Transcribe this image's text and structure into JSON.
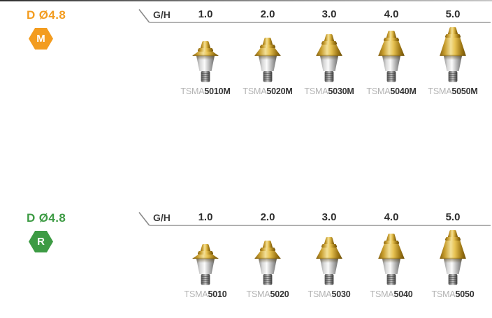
{
  "page": {
    "accent_orange": "#f39c1f",
    "accent_green": "#3d9b44",
    "gold_color": "#d9b13b",
    "chrome_color": "#c9c9c9"
  },
  "sections": [
    {
      "title": "D Ø4.8",
      "badge_letter": "M",
      "badge_shape": "hexagon",
      "accent_color": "#f39c1f",
      "gh_label": "G/H",
      "columns": [
        {
          "gh": "1.0",
          "name_prefix": "TSMA",
          "name_number": "5010M"
        },
        {
          "gh": "2.0",
          "name_prefix": "TSMA",
          "name_number": "5020M"
        },
        {
          "gh": "3.0",
          "name_prefix": "TSMA",
          "name_number": "5030M"
        },
        {
          "gh": "4.0",
          "name_prefix": "TSMA",
          "name_number": "5040M"
        },
        {
          "gh": "5.0",
          "name_prefix": "TSMA",
          "name_number": "5050M"
        }
      ]
    },
    {
      "title": "D Ø4.8",
      "badge_letter": "R",
      "badge_shape": "hexagon",
      "accent_color": "#3d9b44",
      "gh_label": "G/H",
      "columns": [
        {
          "gh": "1.0",
          "name_prefix": "TSMA",
          "name_number": "5010"
        },
        {
          "gh": "2.0",
          "name_prefix": "TSMA",
          "name_number": "5020"
        },
        {
          "gh": "3.0",
          "name_prefix": "TSMA",
          "name_number": "5030"
        },
        {
          "gh": "4.0",
          "name_prefix": "TSMA",
          "name_number": "5040"
        },
        {
          "gh": "5.0",
          "name_prefix": "TSMA",
          "name_number": "5050"
        }
      ]
    }
  ]
}
